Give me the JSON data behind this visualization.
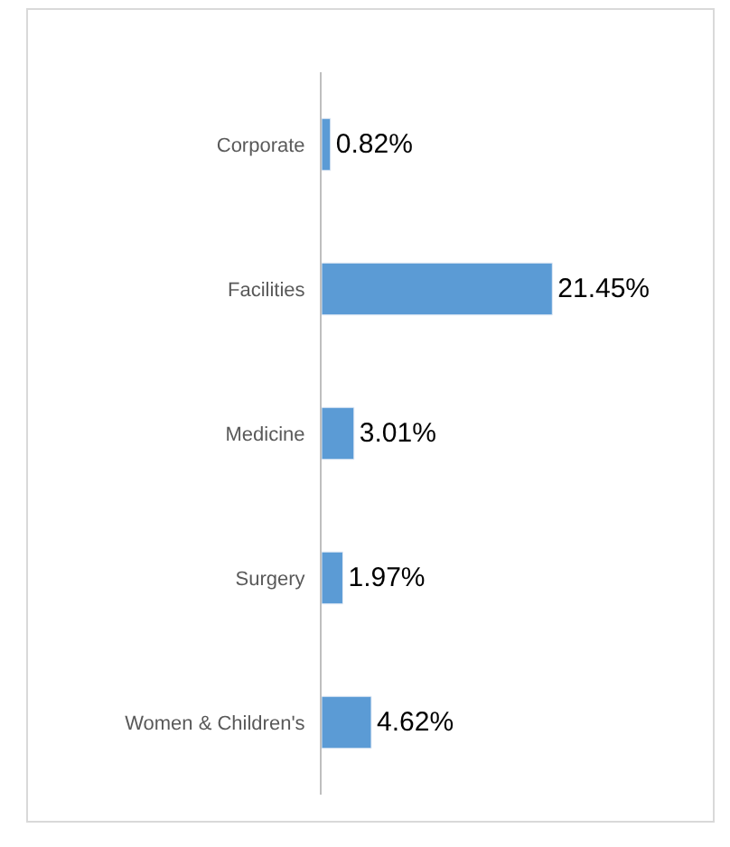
{
  "chart_data": {
    "type": "bar",
    "orientation": "horizontal",
    "categories": [
      "Corporate",
      "Facilities",
      "Medicine",
      "Surgery",
      "Women & Children's"
    ],
    "values": [
      0.82,
      21.45,
      3.01,
      1.97,
      4.62
    ],
    "value_labels": [
      "0.82%",
      "21.45%",
      "3.01%",
      "1.97%",
      "4.62%"
    ],
    "color": "#5b9bd5",
    "legend": false
  }
}
